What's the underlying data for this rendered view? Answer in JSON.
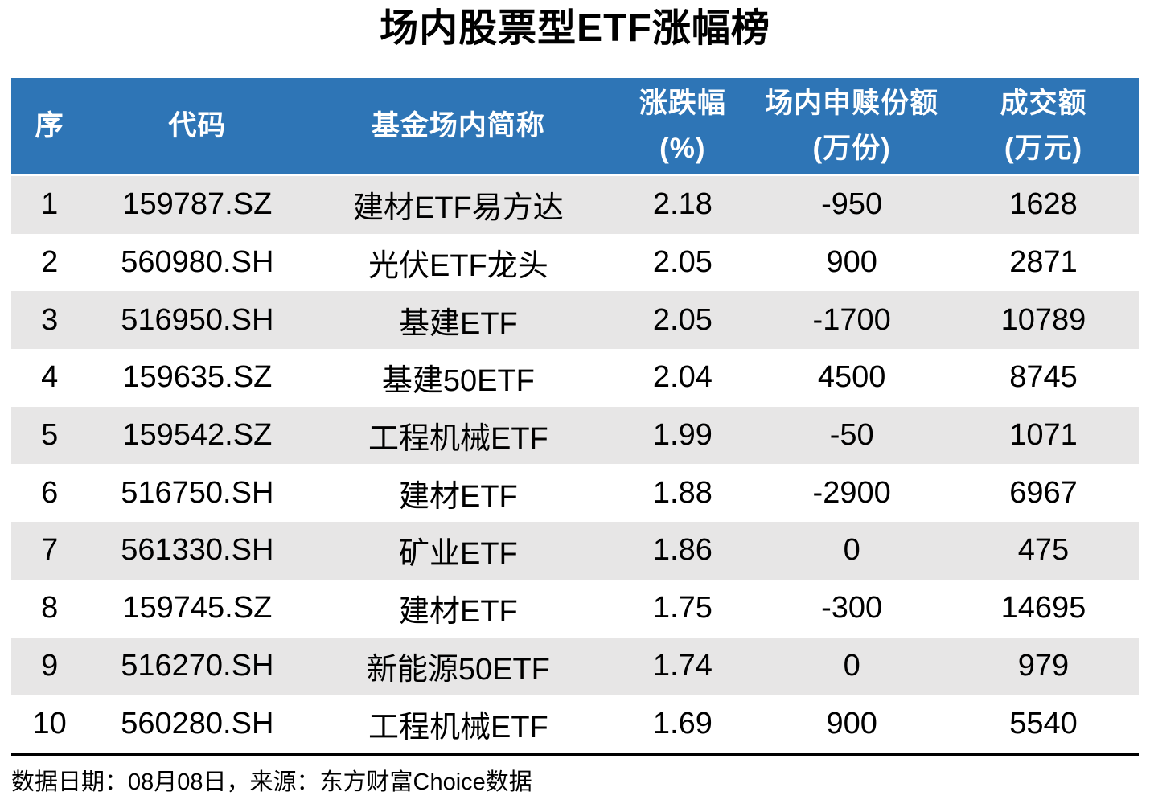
{
  "title": "场内股票型ETF涨幅榜",
  "footer": {
    "note": "数据日期：08月08日，来源：东方财富Choice数据"
  },
  "colors": {
    "header_bg": "#2E75B6",
    "header_text": "#FFFFFF",
    "row_alt_bg": "#E7E6E6",
    "row_bg": "#FFFFFF",
    "body_text": "#000000",
    "divider": "#000000"
  },
  "table": {
    "columns": [
      {
        "key": "seq",
        "label": "序",
        "unit": ""
      },
      {
        "key": "code",
        "label": "代码",
        "unit": ""
      },
      {
        "key": "name",
        "label": "基金场内简称",
        "unit": ""
      },
      {
        "key": "change",
        "label": "涨跌幅",
        "unit": "(%)"
      },
      {
        "key": "flow",
        "label": "场内申赎份额",
        "unit": "(万份)"
      },
      {
        "key": "turnover",
        "label": "成交额",
        "unit": "(万元)"
      }
    ],
    "rows": [
      {
        "cells": [
          "1",
          "159787.SZ",
          "建材ETF易方达",
          "2.18",
          "-950",
          "1628"
        ]
      },
      {
        "cells": [
          "2",
          "560980.SH",
          "光伏ETF龙头",
          "2.05",
          "900",
          "2871"
        ]
      },
      {
        "cells": [
          "3",
          "516950.SH",
          "基建ETF",
          "2.05",
          "-1700",
          "10789"
        ]
      },
      {
        "cells": [
          "4",
          "159635.SZ",
          "基建50ETF",
          "2.04",
          "4500",
          "8745"
        ]
      },
      {
        "cells": [
          "5",
          "159542.SZ",
          "工程机械ETF",
          "1.99",
          "-50",
          "1071"
        ]
      },
      {
        "cells": [
          "6",
          "516750.SH",
          "建材ETF",
          "1.88",
          "-2900",
          "6967"
        ]
      },
      {
        "cells": [
          "7",
          "561330.SH",
          "矿业ETF",
          "1.86",
          "0",
          "475"
        ]
      },
      {
        "cells": [
          "8",
          "159745.SZ",
          "建材ETF",
          "1.75",
          "-300",
          "14695"
        ]
      },
      {
        "cells": [
          "9",
          "516270.SH",
          "新能源50ETF",
          "1.74",
          "0",
          "979"
        ]
      },
      {
        "cells": [
          "10",
          "560280.SH",
          "工程机械ETF",
          "1.69",
          "900",
          "5540"
        ]
      }
    ]
  },
  "chart_data": {
    "type": "table",
    "title": "场内股票型ETF涨幅榜",
    "columns": [
      "序",
      "代码",
      "基金场内简称",
      "涨跌幅(%)",
      "场内申赎份额(万份)",
      "成交额(万元)"
    ],
    "rows": [
      [
        1,
        "159787.SZ",
        "建材ETF易方达",
        2.18,
        -950,
        1628
      ],
      [
        2,
        "560980.SH",
        "光伏ETF龙头",
        2.05,
        900,
        2871
      ],
      [
        3,
        "516950.SH",
        "基建ETF",
        2.05,
        -1700,
        10789
      ],
      [
        4,
        "159635.SZ",
        "基建50ETF",
        2.04,
        4500,
        8745
      ],
      [
        5,
        "159542.SZ",
        "工程机械ETF",
        1.99,
        -50,
        1071
      ],
      [
        6,
        "516750.SH",
        "建材ETF",
        1.88,
        -2900,
        6967
      ],
      [
        7,
        "561330.SH",
        "矿业ETF",
        1.86,
        0,
        475
      ],
      [
        8,
        "159745.SZ",
        "建材ETF",
        1.75,
        -300,
        14695
      ],
      [
        9,
        "516270.SH",
        "新能源50ETF",
        1.74,
        0,
        979
      ],
      [
        10,
        "560280.SH",
        "工程机械ETF",
        1.69,
        900,
        5540
      ]
    ],
    "source_note": "数据日期：08月08日，来源：东方财富Choice数据",
    "layout": {
      "header_style": "blue-banner",
      "row_striping": "odd-rows-gray",
      "alignment": "center"
    }
  }
}
